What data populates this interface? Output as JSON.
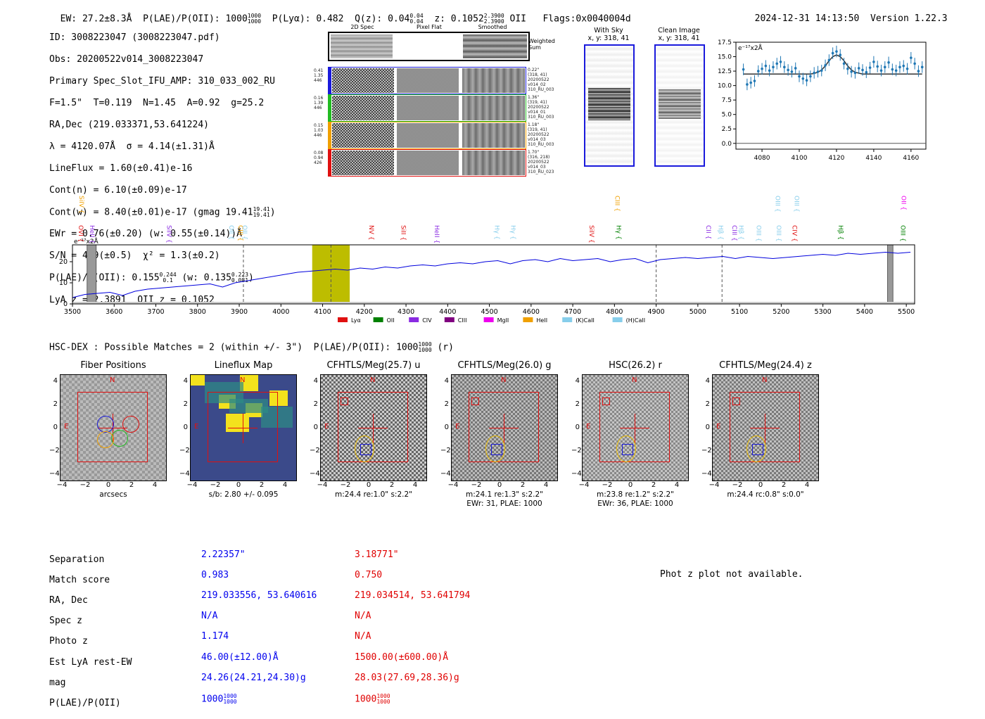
{
  "header": {
    "ew": "EW: 27.2±8.3Å",
    "plae": "P(LAE)/P(OII): 1000",
    "plae_hi": "1000",
    "plae_lo": "1000",
    "plya": "P(Lyα): 0.482",
    "qz": "Q(z): 0.04",
    "qz_hi": "0.04",
    "qz_lo": "0.04",
    "z": "z: 0.1052",
    "z_hi": "2.3900",
    "z_lo": "2.3900",
    "z_line": "OII",
    "flags": "Flags:0x0040004d",
    "timestamp": "2024-12-31 14:13:50",
    "version": "Version 1.22.3"
  },
  "info": {
    "id": "ID: 3008223047 (3008223047.pdf)",
    "obs": "Obs: 20200522v014_3008223047",
    "slot": "Primary Spec_Slot_IFU_AMP: 310_033_002_RU",
    "fit": "F=1.5\"  T=0.119  N=1.45  A=0.92  g=25.2",
    "radec": "RA,Dec (219.033371,53.641224)",
    "lambda": "λ = 4120.07Å  σ = 4.14(±1.31)Å",
    "lineflux": "LineFlux = 1.60(±0.41)e-16",
    "contn": "Cont(n) = 6.10(±0.09)e-17",
    "contw": "Cont(w) = 8.40(±0.01)e-17 (gmag 19.41",
    "contw_hi": "19.41",
    "contw_lo": "19.41",
    "ewr": "EWr = 0.76(±0.20) (w: 0.55(±0.14))Å",
    "sn": "S/N = 4.9(±0.5)  χ² = 1.3(±0.2)",
    "plae": "P(LAE)/P(OII): 0.155",
    "plae_hi": "0.244",
    "plae_lo": "0.1",
    "plae_w": "(w: 0.135",
    "plae_w_hi": "0.223",
    "plae_w_lo": "0.081",
    "lyaz": "LyA z = 2.3891  OII z = 0.1052"
  },
  "spec2d": {
    "col_titles": [
      "2D Spec",
      "Pixel Flat",
      "Smoothed"
    ],
    "weighted_sum": "Weighted\nSum",
    "rows": [
      {
        "left": [
          "0.41",
          "1.35",
          "446"
        ],
        "right": [
          "0.22\"",
          "(318, 41)",
          "20200522",
          "v014_02",
          "310_RU_003"
        ],
        "color": "#1a1adc"
      },
      {
        "left": [
          "0.16",
          "1.39",
          "446"
        ],
        "right": [
          "1.36\"",
          "(319, 41)",
          "20200522",
          "v014_01",
          "310_RU_003"
        ],
        "color": "#22bb22"
      },
      {
        "left": [
          "0.15",
          "1.03",
          "446"
        ],
        "right": [
          "1.18\"",
          "(319, 41)",
          "20200522",
          "v014_03",
          "310_RU_003"
        ],
        "color": "#f0a000"
      },
      {
        "left": [
          "0.08",
          "0.94",
          "426"
        ],
        "right": [
          "1.70\"",
          "(316, 218)",
          "20200522",
          "v014_03",
          "310_RU_023"
        ],
        "color": "#e01010"
      }
    ]
  },
  "sky": {
    "with_sky_title": "With Sky",
    "with_sky_xy": "x, y: 318, 41",
    "clean_title": "Clean Image",
    "clean_xy": "x, y: 318, 41"
  },
  "fit_plot": {
    "unit_label": "e⁻¹⁷x2Å",
    "chart_data": {
      "type": "line",
      "title": "",
      "xlabel": "",
      "ylabel": "",
      "xlim": [
        4066,
        4168
      ],
      "ylim": [
        -1,
        17.5
      ],
      "xticks": [
        4080,
        4100,
        4120,
        4140,
        4160
      ],
      "yticks": [
        0.0,
        2.5,
        5.0,
        7.5,
        10.0,
        12.5,
        15.0,
        17.5
      ],
      "data_x": [
        4070,
        4072,
        4074,
        4076,
        4078,
        4080,
        4082,
        4084,
        4086,
        4088,
        4090,
        4092,
        4094,
        4096,
        4098,
        4100,
        4102,
        4104,
        4106,
        4108,
        4110,
        4112,
        4114,
        4116,
        4118,
        4120,
        4122,
        4124,
        4126,
        4128,
        4130,
        4132,
        4134,
        4136,
        4138,
        4140,
        4142,
        4144,
        4146,
        4148,
        4150,
        4152,
        4154,
        4156,
        4158,
        4160,
        4162,
        4164,
        4166
      ],
      "data_y": [
        12.8,
        10.2,
        10.5,
        10.8,
        12.5,
        12.9,
        13.4,
        12.6,
        13.2,
        13.8,
        14.1,
        13.2,
        12.7,
        12.4,
        13.0,
        11.6,
        11.2,
        10.9,
        11.6,
        12.2,
        12.4,
        12.6,
        13.5,
        14.4,
        15.6,
        15.9,
        15.3,
        13.8,
        12.9,
        12.4,
        12.2,
        13.0,
        12.7,
        12.3,
        13.1,
        14.1,
        13.3,
        12.6,
        13.2,
        14.0,
        12.8,
        12.6,
        13.2,
        13.4,
        12.9,
        14.8,
        13.8,
        12.5,
        13.2
      ],
      "fit_x": [
        4070,
        4106,
        4108,
        4110,
        4112,
        4114,
        4116,
        4118,
        4120,
        4122,
        4124,
        4126,
        4128,
        4130,
        4134,
        4166
      ],
      "fit_y": [
        12.0,
        12.0,
        12.1,
        12.3,
        12.7,
        13.4,
        14.3,
        15.0,
        15.3,
        15.0,
        14.3,
        13.4,
        12.7,
        12.3,
        12.0,
        12.0
      ]
    }
  },
  "spectrum": {
    "unit_label": "e⁻¹⁷x2Å",
    "chart_data": {
      "type": "line",
      "title": "",
      "xlim": [
        3500,
        5520
      ],
      "ylim": [
        0,
        28
      ],
      "xticks": [
        3500,
        3600,
        3700,
        3800,
        3900,
        4000,
        4100,
        4200,
        4300,
        4400,
        4500,
        4600,
        4700,
        4800,
        4900,
        5000,
        5100,
        5200,
        5300,
        5400,
        5500
      ],
      "yticks": [
        0,
        10,
        20
      ],
      "x": [
        3500,
        3530,
        3560,
        3590,
        3620,
        3650,
        3680,
        3710,
        3740,
        3770,
        3800,
        3830,
        3860,
        3890,
        3920,
        3950,
        3980,
        4010,
        4040,
        4070,
        4100,
        4130,
        4160,
        4190,
        4220,
        4250,
        4280,
        4310,
        4340,
        4370,
        4400,
        4430,
        4460,
        4490,
        4520,
        4550,
        4580,
        4610,
        4640,
        4670,
        4700,
        4730,
        4760,
        4790,
        4820,
        4850,
        4880,
        4910,
        4940,
        4970,
        5000,
        5030,
        5060,
        5090,
        5120,
        5150,
        5180,
        5210,
        5240,
        5270,
        5300,
        5330,
        5360,
        5390,
        5420,
        5450,
        5480,
        5510
      ],
      "y": [
        3,
        4.5,
        5,
        5.5,
        4,
        6,
        7,
        7.5,
        8,
        8.5,
        9,
        9.5,
        8,
        10,
        11,
        12,
        13,
        14,
        15,
        15.5,
        16,
        16.5,
        16,
        17,
        16.5,
        17.5,
        17,
        18,
        18.5,
        18,
        19,
        19.5,
        19,
        20,
        20.5,
        19,
        20.5,
        21,
        20,
        21.5,
        20.5,
        21,
        21.5,
        20,
        21,
        21.5,
        19.5,
        21,
        21.5,
        22,
        21.5,
        22,
        22.5,
        21.5,
        22.5,
        22,
        21.5,
        22,
        22.5,
        23,
        23.5,
        23,
        24,
        23.5,
        24,
        24.5,
        24,
        24.5
      ],
      "highlight_range": [
        4075,
        4165
      ],
      "dashed_lines": [
        3910,
        4120,
        4900,
        5058
      ],
      "masked_ranges": [
        [
          3535,
          3557
        ],
        [
          5455,
          5468
        ]
      ],
      "line_labels_top": [
        {
          "label": "SiIV",
          "x": 3512,
          "color": "#f0a000"
        },
        {
          "label": "CIII",
          "x": 4797,
          "color": "#f0a000"
        },
        {
          "label": "OIII",
          "x": 5182,
          "color": "#87ceeb"
        },
        {
          "label": "OIII",
          "x": 5227,
          "color": "#87ceeb"
        },
        {
          "label": "OII",
          "x": 5484,
          "color": "#ee00ee"
        }
      ],
      "line_labels_low": [
        {
          "label": "OVI",
          "x": 3510,
          "color": "#e01010"
        },
        {
          "label": "HeII",
          "x": 3537,
          "color": "#8a2be2"
        },
        {
          "label": "SiIV",
          "x": 3722,
          "color": "#8a2be2"
        },
        {
          "label": "OII",
          "x": 3871,
          "color": "#87ceeb"
        },
        {
          "label": "CIII",
          "x": 3893,
          "color": "#f0a000"
        },
        {
          "label": "OII",
          "x": 3903,
          "color": "#87ceeb"
        },
        {
          "label": "NV",
          "x": 4207,
          "color": "#e01010"
        },
        {
          "label": "SiII",
          "x": 4284,
          "color": "#e01010"
        },
        {
          "label": "HeII",
          "x": 4364,
          "color": "#8a2be2"
        },
        {
          "label": "Hγ",
          "x": 4508,
          "color": "#87ceeb"
        },
        {
          "label": "Hγ",
          "x": 4547,
          "color": "#87ceeb"
        },
        {
          "label": "SiIV",
          "x": 4735,
          "color": "#e01010"
        },
        {
          "label": "Hγ",
          "x": 4800,
          "color": "#008000"
        },
        {
          "label": "CII",
          "x": 5015,
          "color": "#8a2be2"
        },
        {
          "label": "Hβ",
          "x": 5045,
          "color": "#87ceeb"
        },
        {
          "label": "CIII",
          "x": 5078,
          "color": "#8a2be2"
        },
        {
          "label": "Hβ",
          "x": 5094,
          "color": "#87ceeb"
        },
        {
          "label": "OIII",
          "x": 5136,
          "color": "#87ceeb"
        },
        {
          "label": "OIII",
          "x": 5184,
          "color": "#87ceeb"
        },
        {
          "label": "CIV",
          "x": 5222,
          "color": "#e01010"
        },
        {
          "label": "Hβ",
          "x": 5333,
          "color": "#008000"
        },
        {
          "label": "OIII",
          "x": 5482,
          "color": "#008000"
        }
      ]
    },
    "legend": [
      {
        "label": "Lyα",
        "color": "#e01010"
      },
      {
        "label": "OII",
        "color": "#008000"
      },
      {
        "label": "CIV",
        "color": "#8a2be2"
      },
      {
        "label": "CIII",
        "color": "#800080"
      },
      {
        "label": "MgII",
        "color": "#ee00ee"
      },
      {
        "label": "HeII",
        "color": "#f0a000"
      },
      {
        "label": "(K)CaII",
        "color": "#87ceeb"
      },
      {
        "label": "(H)CaII",
        "color": "#87ceeb"
      }
    ]
  },
  "hsc": {
    "title": "HSC-DEX : Possible Matches = 2 (within +/- 3\")  P(LAE)/P(OII): 1000",
    "title_hi": "1000",
    "title_lo": "1000",
    "title_suffix": "(r)",
    "axis_ticks": [
      "4",
      "2",
      "0",
      "−2",
      "−4"
    ],
    "x_ticks": [
      "−4",
      "−2",
      "0",
      "2",
      "4"
    ],
    "n_label": "N",
    "e_label": "E",
    "panels": [
      {
        "title": "Fiber Positions",
        "caption": "arcsecs",
        "caption2": ""
      },
      {
        "title": "Lineflux Map",
        "caption": "s/b: 2.80 +/- 0.095",
        "caption2": ""
      },
      {
        "title": "CFHTLS/Meg(25.7) u",
        "caption": "m:24.4  re:1.0\"  s:2.2\"",
        "caption2": ""
      },
      {
        "title": "CFHTLS/Meg(26.0) g",
        "caption": "m:24.1  re:1.3\"  s:2.2\"",
        "caption2": "EWr: 31, PLAE: 1000"
      },
      {
        "title": "HSC(26.2) r",
        "caption": "m:23.8  re:1.2\"  s:2.2\"",
        "caption2": "EWr: 36, PLAE: 1000"
      },
      {
        "title": "CFHTLS/Meg(24.4) z",
        "caption": "m:24.4  rc:0.8\"  s:0.0\"",
        "caption2": ""
      }
    ]
  },
  "match_table": {
    "labels": [
      "Separation",
      "Match score",
      "RA, Dec",
      "Spec z",
      "Photo z",
      "Est LyA rest-EW",
      "mag",
      "P(LAE)/P(OII)"
    ],
    "match1": [
      "2.22357\"",
      "0.983",
      "219.033556, 53.640616",
      "N/A",
      "1.174",
      "46.00(±12.00)Å",
      "24.26(24.21,24.30)g",
      "1000"
    ],
    "match1_plae_hi": "1000",
    "match1_plae_lo": "1000",
    "match2": [
      "3.18771\"",
      "0.750",
      "219.034514, 53.641794",
      "N/A",
      "N/A",
      "1500.00(±600.00)Å",
      "28.03(27.69,28.36)g",
      "1000"
    ],
    "match2_plae_hi": "1000",
    "match2_plae_lo": "1000",
    "photz_note": "Phot z plot not available."
  }
}
